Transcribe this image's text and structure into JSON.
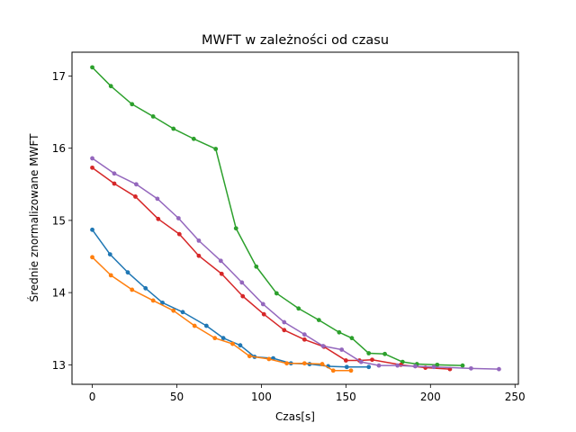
{
  "chart_data": {
    "type": "line",
    "title": "MWFT w zależności od czasu",
    "xlabel": "Czas[s]",
    "ylabel": "Średnie znormalizowane MWFT",
    "xlim": [
      -12,
      252
    ],
    "ylim": [
      12.73,
      17.33
    ],
    "xticks": [
      0,
      50,
      100,
      150,
      200,
      250
    ],
    "yticks": [
      13,
      14,
      15,
      16,
      17
    ],
    "grid": false,
    "legend": "none",
    "series": [
      {
        "color": "#1f77b4",
        "x": [
          0,
          10.5,
          21,
          31.5,
          41.5,
          53.5,
          67.5,
          77.5,
          87.5,
          96,
          107,
          117.5,
          128.5,
          139.5,
          150.5,
          163.5
        ],
        "y": [
          14.87,
          14.53,
          14.28,
          14.06,
          13.86,
          13.73,
          13.54,
          13.37,
          13.27,
          13.11,
          13.09,
          13.02,
          13.01,
          12.98,
          12.97,
          12.97
        ]
      },
      {
        "color": "#ff7f0e",
        "x": [
          0,
          11,
          23.5,
          36,
          48,
          60.5,
          72.5,
          83,
          93,
          104.5,
          115,
          125.5,
          136,
          142.5,
          153
        ],
        "y": [
          14.49,
          14.24,
          14.04,
          13.89,
          13.75,
          13.54,
          13.37,
          13.29,
          13.12,
          13.08,
          13.02,
          13.02,
          13.01,
          12.92,
          12.92
        ]
      },
      {
        "color": "#2ca02c",
        "x": [
          0,
          11,
          23.5,
          36,
          48,
          60,
          73,
          85,
          97,
          109,
          122,
          134,
          146,
          153.5,
          163.5,
          173,
          183.5,
          192,
          204,
          219
        ],
        "y": [
          17.12,
          16.86,
          16.61,
          16.44,
          16.27,
          16.13,
          15.99,
          14.89,
          14.36,
          13.99,
          13.78,
          13.62,
          13.45,
          13.37,
          13.16,
          13.15,
          13.04,
          13.01,
          13.0,
          12.99
        ]
      },
      {
        "color": "#d62728",
        "x": [
          0,
          13,
          25.5,
          39,
          51.5,
          63,
          76.5,
          89,
          101.5,
          113.5,
          125.5,
          137,
          150,
          158,
          165.5,
          182.5,
          197,
          211.5
        ],
        "y": [
          15.73,
          15.51,
          15.33,
          15.02,
          14.81,
          14.51,
          14.26,
          13.95,
          13.7,
          13.48,
          13.35,
          13.25,
          13.06,
          13.06,
          13.07,
          13.0,
          12.96,
          12.94
        ]
      },
      {
        "color": "#9467bd",
        "x": [
          0,
          13,
          26,
          38.5,
          51,
          63,
          76,
          88.5,
          101,
          113.5,
          125.5,
          136.5,
          147.5,
          159,
          169.5,
          180.5,
          191,
          202,
          224,
          240.5
        ],
        "y": [
          15.86,
          15.65,
          15.5,
          15.3,
          15.03,
          14.72,
          14.44,
          14.14,
          13.84,
          13.59,
          13.42,
          13.26,
          13.21,
          13.04,
          12.99,
          12.99,
          12.98,
          12.97,
          12.95,
          12.94
        ]
      }
    ]
  }
}
